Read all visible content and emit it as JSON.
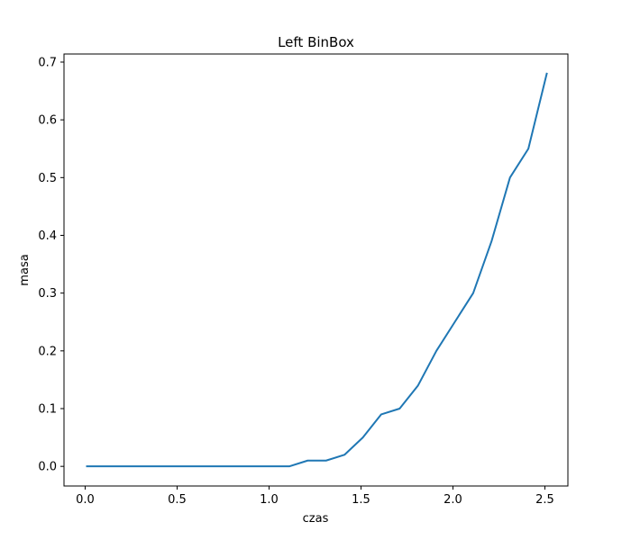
{
  "chart_data": {
    "type": "line",
    "title": "Left BinBox",
    "xlabel": "czas",
    "ylabel": "masa",
    "xlim": [
      -0.115,
      2.625
    ],
    "ylim": [
      -0.034,
      0.714
    ],
    "x_ticks": [
      0.0,
      0.5,
      1.0,
      1.5,
      2.0,
      2.5
    ],
    "x_tick_labels": [
      "0.0",
      "0.5",
      "1.0",
      "1.5",
      "2.0",
      "2.5"
    ],
    "y_ticks": [
      0.0,
      0.1,
      0.2,
      0.3,
      0.4,
      0.5,
      0.6,
      0.7
    ],
    "y_tick_labels": [
      "0.0",
      "0.1",
      "0.2",
      "0.3",
      "0.4",
      "0.5",
      "0.6",
      "0.7"
    ],
    "grid": false,
    "series": [
      {
        "color": "#1f77b4",
        "x": [
          0.01,
          0.11,
          0.21,
          0.31,
          0.41,
          0.51,
          0.61,
          0.71,
          0.81,
          0.91,
          1.01,
          1.11,
          1.21,
          1.31,
          1.41,
          1.51,
          1.61,
          1.71,
          1.81,
          1.91,
          2.01,
          2.11,
          2.21,
          2.31,
          2.41,
          2.51
        ],
        "y": [
          0.0,
          0.0,
          0.0,
          0.0,
          0.0,
          0.0,
          0.0,
          0.0,
          0.0,
          0.0,
          0.0,
          0.0,
          0.01,
          0.01,
          0.02,
          0.05,
          0.09,
          0.1,
          0.14,
          0.2,
          0.25,
          0.3,
          0.39,
          0.5,
          0.55,
          0.68
        ]
      }
    ]
  }
}
